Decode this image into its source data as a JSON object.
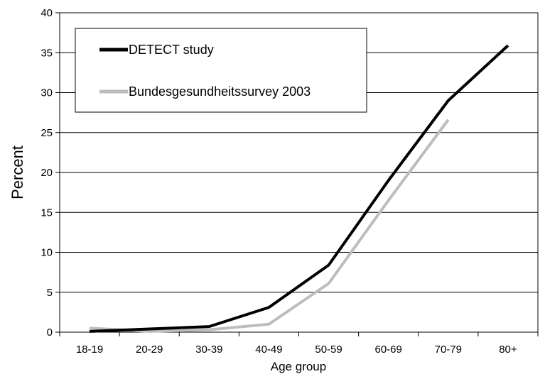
{
  "chart_data": {
    "type": "line",
    "title": "",
    "xlabel": "Age group",
    "ylabel": "Percent",
    "categories": [
      "18-19",
      "20-29",
      "30-39",
      "40-49",
      "50-59",
      "60-69",
      "70-79",
      "80+"
    ],
    "ylim": [
      0,
      40
    ],
    "yticks": [
      "0",
      "5",
      "10",
      "15",
      "20",
      "25",
      "30",
      "35",
      "40"
    ],
    "grid": "horizontal",
    "legend_position": "top-left",
    "series": [
      {
        "name": "DETECT study",
        "color": "#000000",
        "values": [
          0.1,
          0.4,
          0.7,
          3.1,
          8.4,
          19.0,
          29.0,
          35.9
        ]
      },
      {
        "name": "Bundesgesundheitssurvey 2003",
        "color": "#bdbdbd",
        "values": [
          0.5,
          0.1,
          0.3,
          1.0,
          6.1,
          16.5,
          26.6,
          null
        ]
      }
    ]
  }
}
